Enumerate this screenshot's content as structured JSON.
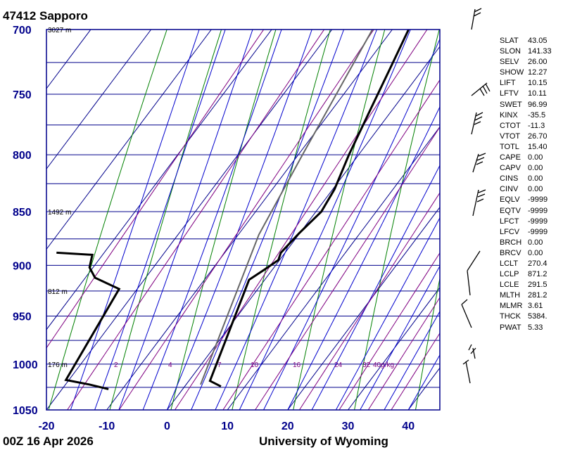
{
  "header": {
    "station": "47412  Sapporo"
  },
  "footer": {
    "time": "00Z 16 Apr 2026",
    "source": "University of Wyoming"
  },
  "chart_data": {
    "type": "line",
    "title": "47412  Sapporo",
    "xlabel": "",
    "ylabel": "",
    "x_axis": {
      "ticks": [
        -20,
        -10,
        0,
        10,
        20,
        30,
        40
      ],
      "range": [
        -20,
        45
      ]
    },
    "y_axis": {
      "ticks": [
        700,
        750,
        800,
        850,
        900,
        950,
        1000,
        1050
      ],
      "range": [
        700,
        1050
      ],
      "scale": "log-skew"
    },
    "height_labels": [
      {
        "p": 700,
        "label": "3027 m"
      },
      {
        "p": 850,
        "label": "1492 m"
      },
      {
        "p": 925,
        "label": "812 m"
      },
      {
        "p": 1000,
        "label": "176 m"
      }
    ],
    "mixing_ratio_labels": [
      "2",
      "4",
      "7",
      "10",
      "16",
      "24",
      "32",
      "40g/kg"
    ],
    "series": [
      {
        "role": "temperature",
        "color": "#000000",
        "points": [
          [
            700,
            -7.3
          ],
          [
            730,
            -5.5
          ],
          [
            760,
            -3.8
          ],
          [
            800,
            -1.6
          ],
          [
            830,
            0.3
          ],
          [
            850,
            0.9
          ],
          [
            870,
            -0.1
          ],
          [
            888,
            -0.7
          ],
          [
            895,
            -0.2
          ],
          [
            904,
            -1.3
          ],
          [
            914,
            -2.6
          ],
          [
            1018,
            3.5
          ],
          [
            1024,
            6.0
          ]
        ]
      },
      {
        "role": "dewpoint",
        "color": "#000000",
        "points": [
          [
            888,
            -37.9
          ],
          [
            890,
            -31.7
          ],
          [
            902,
            -30.6
          ],
          [
            912,
            -28.4
          ],
          [
            923,
            -23.0
          ],
          [
            1017,
            -20.5
          ],
          [
            1022,
            -16.0
          ],
          [
            1027,
            -12.3
          ]
        ]
      },
      {
        "role": "parcel",
        "color": "#666666",
        "points": [
          [
            700,
            -13.3
          ],
          [
            800,
            -9.3
          ],
          [
            871,
            -6.6
          ],
          [
            1022,
            2.4
          ]
        ]
      }
    ],
    "isotherm_interval": 10,
    "wind_barb_count": 10
  },
  "indices": [
    {
      "name": "SLAT",
      "value": "43.05"
    },
    {
      "name": "SLON",
      "value": "141.33"
    },
    {
      "name": "SELV",
      "value": "26.00"
    },
    {
      "name": "SHOW",
      "value": "12.27"
    },
    {
      "name": "LIFT",
      "value": "10.15"
    },
    {
      "name": "LFTV",
      "value": "10.11"
    },
    {
      "name": "SWET",
      "value": "96.99"
    },
    {
      "name": "KINX",
      "value": "-35.5"
    },
    {
      "name": "CTOT",
      "value": "-11.3"
    },
    {
      "name": "VTOT",
      "value": "26.70"
    },
    {
      "name": "TOTL",
      "value": "15.40"
    },
    {
      "name": "CAPE",
      "value": "0.00"
    },
    {
      "name": "CAPV",
      "value": "0.00"
    },
    {
      "name": "CINS",
      "value": "0.00"
    },
    {
      "name": "CINV",
      "value": "0.00"
    },
    {
      "name": "EQLV",
      "value": "-9999"
    },
    {
      "name": "EQTV",
      "value": "-9999"
    },
    {
      "name": "LFCT",
      "value": "-9999"
    },
    {
      "name": "LFCV",
      "value": "-9999"
    },
    {
      "name": "BRCH",
      "value": "0.00"
    },
    {
      "name": "BRCV",
      "value": "0.00"
    },
    {
      "name": "LCLT",
      "value": "270.4"
    },
    {
      "name": "LCLP",
      "value": "871.2"
    },
    {
      "name": "LCLE",
      "value": "291.5"
    },
    {
      "name": "MLTH",
      "value": "281.2"
    },
    {
      "name": "MLMR",
      "value": "3.61"
    },
    {
      "name": "THCK",
      "value": "5384."
    },
    {
      "name": "PWAT",
      "value": "5.33"
    }
  ],
  "colors": {
    "grid": "#00008b",
    "dry_adiabat": "#008000",
    "moist_adiabat": "#0000cd",
    "mixing_ratio": "#800080",
    "profile": "#000000",
    "parcel": "#666666"
  }
}
